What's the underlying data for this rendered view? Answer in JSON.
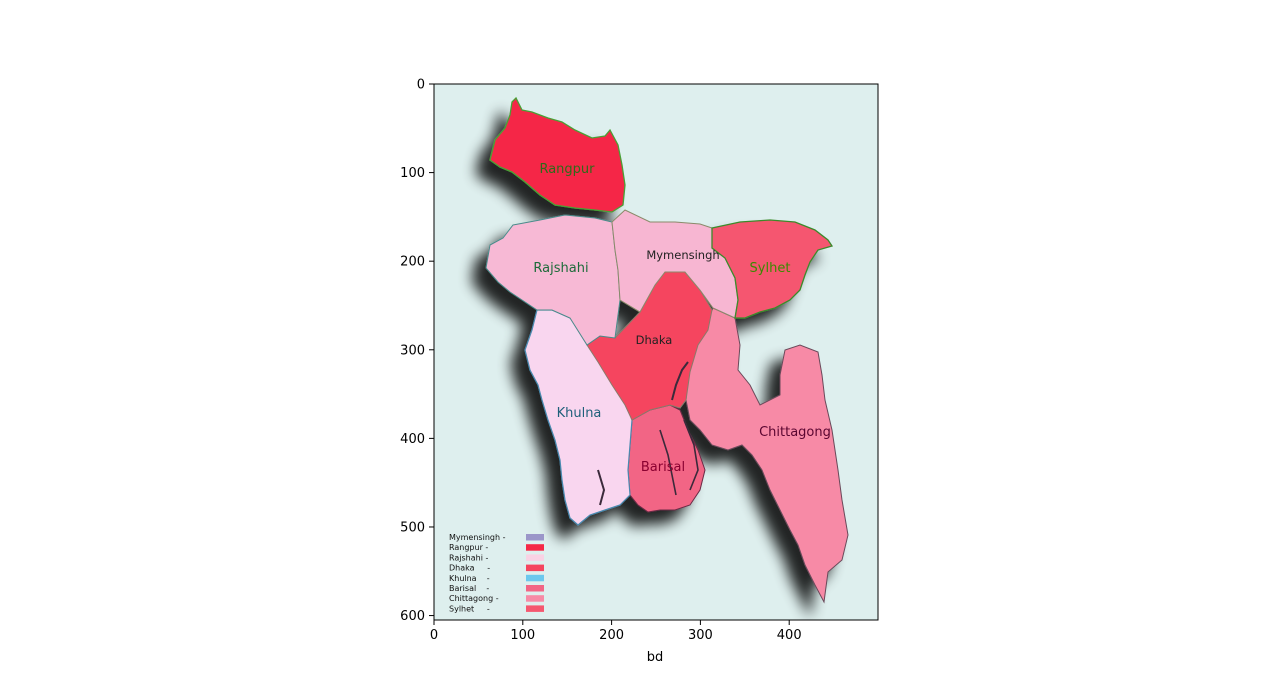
{
  "axes": {
    "xlabel": "bd",
    "xticks": [
      "0",
      "100",
      "200",
      "300",
      "400"
    ],
    "yticks": [
      "0",
      "100",
      "200",
      "300",
      "400",
      "500",
      "600"
    ],
    "xlim": [
      0,
      500
    ],
    "ylim": [
      605,
      0
    ]
  },
  "map": {
    "background": "#deefee",
    "regions": [
      {
        "key": "rangpur",
        "label": "Rangpur",
        "fill": "#f52846",
        "label_color": "#2f6b1a"
      },
      {
        "key": "rajshahi",
        "label": "Rajshahi",
        "fill": "#f7b9d5",
        "label_color": "#1d6b3a"
      },
      {
        "key": "mymensingh",
        "label": "Mymensingh",
        "fill": "#f7b6d2",
        "label_color": "#222222"
      },
      {
        "key": "sylhet",
        "label": "Sylhet",
        "fill": "#f5576f",
        "label_color": "#3b8a00"
      },
      {
        "key": "dhaka",
        "label": "Dhaka",
        "fill": "#f5455f",
        "label_color": "#222222"
      },
      {
        "key": "khulna",
        "label": "Khulna",
        "fill": "#f9d6ef",
        "label_color": "#1e5f7a"
      },
      {
        "key": "barisal",
        "label": "Barisal",
        "fill": "#f26585",
        "label_color": "#8a0030"
      },
      {
        "key": "chittagong",
        "label": "Chittagong",
        "fill": "#f78aa6",
        "label_color": "#5a0530"
      }
    ],
    "legend": [
      {
        "label": "Mymensingh -",
        "color": "#9b96c9"
      },
      {
        "label": "Rangpur -",
        "color": "#f52846"
      },
      {
        "label": "Rajshahi -",
        "color": "#f9d2e4"
      },
      {
        "label": "Dhaka     -",
        "color": "#f5455f"
      },
      {
        "label": "Khulna    -",
        "color": "#6cc8ee"
      },
      {
        "label": "Barisal    -",
        "color": "#f26585"
      },
      {
        "label": "Chittagong -",
        "color": "#f78aa6"
      },
      {
        "label": "Sylhet     -",
        "color": "#f5576f"
      }
    ]
  }
}
